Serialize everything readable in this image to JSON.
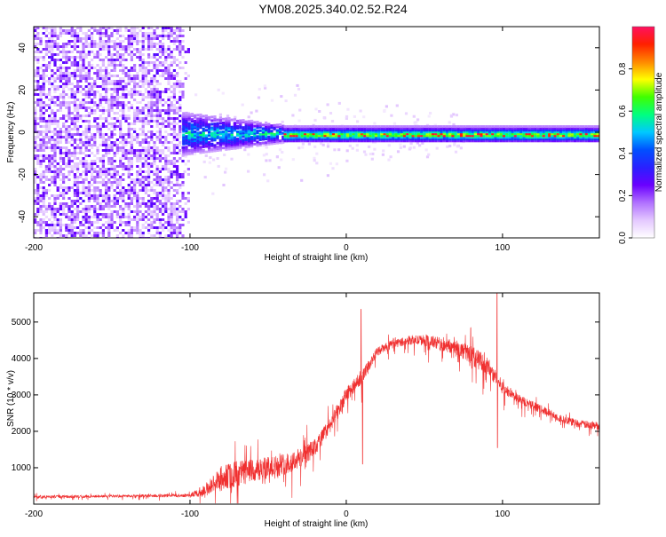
{
  "title": "YM08.2025.340.02.52.R24",
  "colors": {
    "snr_line": "#f03030",
    "axis": "#000000",
    "colorbar_stops": [
      "#ffffff",
      "#e4c8ff",
      "#b070ff",
      "#6a00ff",
      "#2a20ff",
      "#0050ff",
      "#00c8ff",
      "#00ff80",
      "#40ff00",
      "#ffff00",
      "#ff8800",
      "#ff2000",
      "#ff1060"
    ]
  },
  "chart_data": [
    {
      "type": "heatmap",
      "name": "spectrogram",
      "title": "YM08.2025.340.02.52.R24",
      "xlabel": "Height of straight line (km)",
      "ylabel": "Frequency (Hz)",
      "xlim": [
        -200,
        162
      ],
      "ylim": [
        -50,
        50
      ],
      "xticks": [
        -200,
        -100,
        0,
        100
      ],
      "yticks": [
        -40,
        -20,
        0,
        20,
        40
      ],
      "xtick_labels": [
        "-200",
        "-100",
        "0",
        "100"
      ],
      "ytick_labels": [
        "-40",
        "-20",
        "0",
        "20",
        "40"
      ],
      "colorbar": {
        "label": "Normalized spectral amplitude",
        "range": [
          0.0,
          1.0
        ],
        "ticks": [
          0.0,
          0.2,
          0.4,
          0.6,
          0.8
        ],
        "tick_labels": [
          "0.0",
          "0.2",
          "0.4",
          "0.6",
          "0.8"
        ]
      },
      "regions": [
        {
          "x": [
            -200,
            -105
          ],
          "description_freq": [
            -50,
            50
          ],
          "amplitude": [
            0.0,
            0.25
          ]
        },
        {
          "x": [
            -105,
            -40
          ],
          "description_freq": [
            -10,
            10
          ],
          "amplitude": [
            0.1,
            0.6
          ]
        },
        {
          "x": [
            -40,
            162
          ],
          "description_freq": [
            -3,
            3
          ],
          "amplitude": [
            0.3,
            0.95
          ]
        }
      ]
    },
    {
      "type": "line",
      "name": "snr",
      "xlabel": "Height of straight line (km)",
      "ylabel": "SNR (10 * v/v)",
      "xlim": [
        -200,
        162
      ],
      "ylim": [
        0,
        5800
      ],
      "xticks": [
        -200,
        -100,
        0,
        100
      ],
      "yticks": [
        1000,
        2000,
        3000,
        4000,
        5000
      ],
      "xtick_labels": [
        "-200",
        "-100",
        "0",
        "100"
      ],
      "ytick_labels": [
        "1000",
        "2000",
        "3000",
        "4000",
        "5000"
      ],
      "series": [
        {
          "x": [
            -200,
            -150,
            -100,
            -90,
            -80,
            -70,
            -60,
            -50,
            -40,
            -30,
            -20,
            -10,
            0,
            10,
            20,
            30,
            40,
            50,
            60,
            70,
            80,
            90,
            100,
            110,
            120,
            130,
            140,
            150,
            162
          ],
          "y": [
            200,
            220,
            240,
            400,
            700,
            850,
            900,
            1000,
            1100,
            1250,
            1550,
            2200,
            3000,
            3500,
            4200,
            4400,
            4500,
            4500,
            4400,
            4300,
            4100,
            3800,
            3200,
            2900,
            2700,
            2500,
            2300,
            2200,
            2150
          ],
          "spread": [
            60,
            60,
            80,
            300,
            600,
            600,
            550,
            500,
            500,
            500,
            400,
            350,
            350,
            300,
            200,
            200,
            200,
            250,
            300,
            350,
            450,
            450,
            300,
            200,
            200,
            180,
            180,
            180,
            180
          ],
          "spikes": [
            {
              "x": 9.5,
              "y": 5350
            },
            {
              "x": 10.5,
              "y": 1100
            },
            {
              "x": 96.5,
              "y": 5800
            },
            {
              "x": 96.8,
              "y": 1550
            }
          ]
        }
      ]
    }
  ]
}
